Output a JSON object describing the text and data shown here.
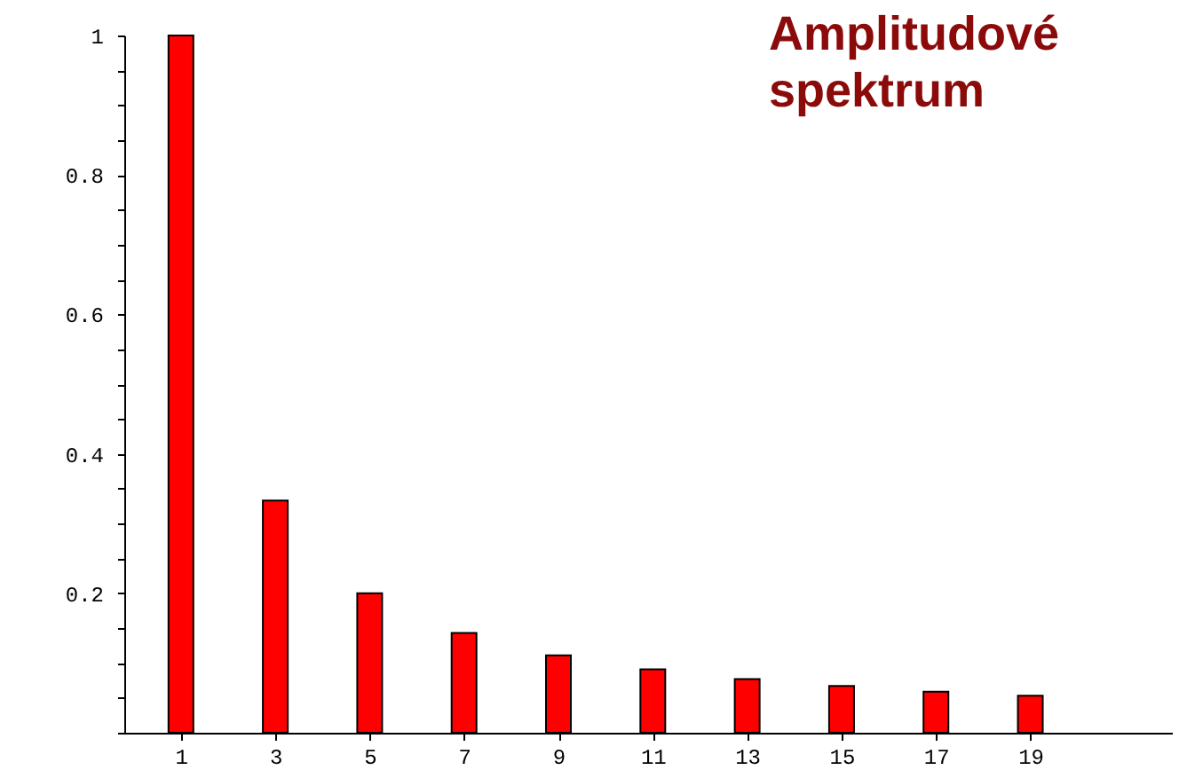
{
  "chart_data": {
    "type": "bar",
    "title": "Amplitudové spektrum",
    "x": [
      1,
      3,
      5,
      7,
      9,
      11,
      13,
      15,
      17,
      19
    ],
    "values": [
      1,
      0.333,
      0.2,
      0.143,
      0.111,
      0.091,
      0.077,
      0.067,
      0.059,
      0.053
    ],
    "color": "#ff0000",
    "xlim": [
      -0.2,
      22
    ],
    "xticks": [
      1,
      3,
      5,
      7,
      9,
      11,
      13,
      15,
      17,
      19
    ],
    "ylim": [
      0,
      1
    ],
    "yticks": [
      {
        "value": 0,
        "label": null
      },
      {
        "value": 0.05,
        "label": null
      },
      {
        "value": 0.1,
        "label": null
      },
      {
        "value": 0.15,
        "label": null
      },
      0.2,
      {
        "value": 0.25,
        "label": null
      },
      {
        "value": 0.3,
        "label": null
      },
      {
        "value": 0.35,
        "label": null
      },
      0.4,
      {
        "value": 0.45,
        "label": null
      },
      {
        "value": 0.5,
        "label": null
      },
      {
        "value": 0.55,
        "label": null
      },
      0.6,
      {
        "value": 0.65,
        "label": null
      },
      {
        "value": 0.7,
        "label": null
      },
      {
        "value": 0.75,
        "label": null
      },
      0.8,
      {
        "value": 0.85,
        "label": null
      },
      {
        "value": 0.9,
        "label": null
      },
      {
        "value": 0.95,
        "label": null
      },
      1
    ],
    "grid": false
  }
}
